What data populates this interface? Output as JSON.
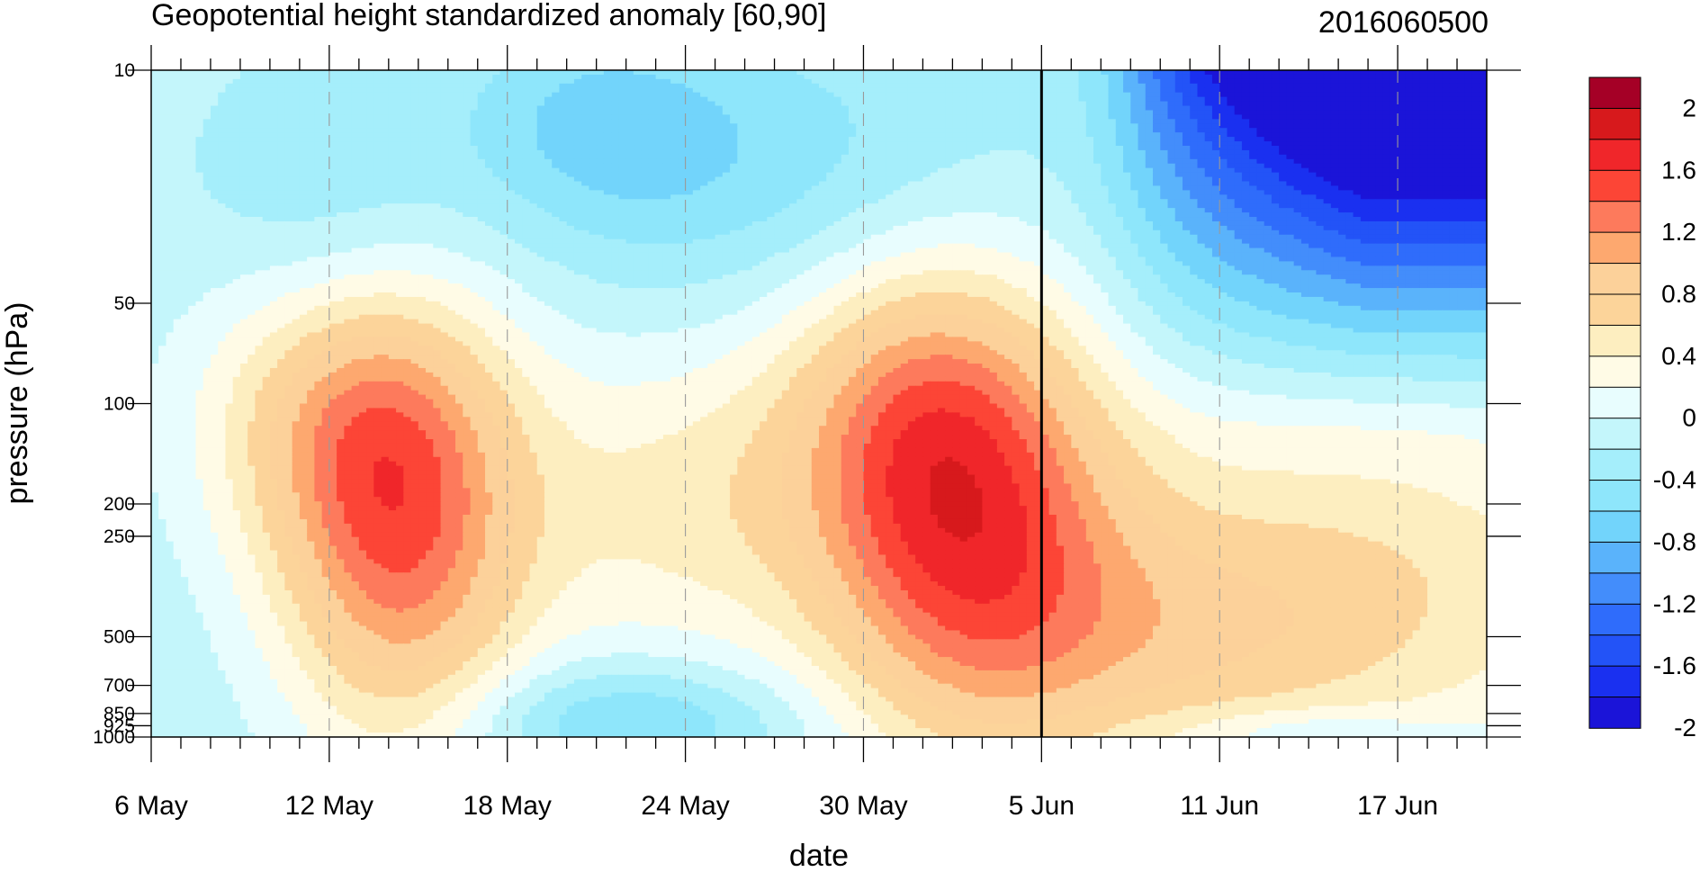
{
  "chart_data": {
    "type": "heatmap",
    "subtype": "filled-contour pressure-time cross section",
    "title": "Geopotential height standardized anomaly [60,90]",
    "date_label": "2016060500",
    "xlabel": "date",
    "ylabel": "pressure (hPa)",
    "x_tick_labels": [
      "6 May",
      "12 May",
      "18 May",
      "24 May",
      "30 May",
      "5 Jun",
      "11 Jun",
      "17 Jun"
    ],
    "x_range": [
      "6 May",
      "20 Jun"
    ],
    "y_ticks": [
      10,
      50,
      100,
      200,
      250,
      500,
      700,
      850,
      925,
      1000
    ],
    "y_scale": "log",
    "y_reversed": true,
    "y_range": [
      1000,
      10
    ],
    "forecast_start_marker": "5 Jun",
    "dashed_vertical_gridlines": true,
    "colorbar": {
      "labels": [
        "2",
        "1.6",
        "1.2",
        "0.8",
        "0.4",
        "0",
        "-0.4",
        "-0.8",
        "-1.2",
        "-1.6",
        "-2"
      ],
      "levels": [
        -2.2,
        -2.0,
        -1.8,
        -1.6,
        -1.4,
        -1.2,
        -1.0,
        -0.8,
        -0.6,
        -0.4,
        -0.2,
        0.0,
        0.2,
        0.4,
        0.6,
        0.8,
        1.0,
        1.2,
        1.4,
        1.6,
        1.8,
        2.0,
        2.2
      ],
      "colors": [
        "#a50026",
        "#d7191c",
        "#f0262a",
        "#fc4536",
        "#fd7a5c",
        "#fda86f",
        "#fcd19a",
        "#fcd49a",
        "#fdeec0",
        "#fffbe6",
        "#e8fdfe",
        "#c4f6fb",
        "#a5eefb",
        "#8ee6fb",
        "#72d4fb",
        "#5ab3fb",
        "#438dfb",
        "#2f6cfb",
        "#2353f7",
        "#1a30f0",
        "#1b14d8"
      ]
    },
    "anomaly_fields": [
      {
        "region": "early May upper troposphere",
        "approx_value": 0.6
      },
      {
        "region": "28-31 May mid troposphere",
        "approx_value": 0.6
      },
      {
        "region": "mid-June stratosphere (forecast)",
        "approx_value": -2.2
      },
      {
        "region": "20 May lower troposphere",
        "approx_value": -0.3
      }
    ]
  }
}
